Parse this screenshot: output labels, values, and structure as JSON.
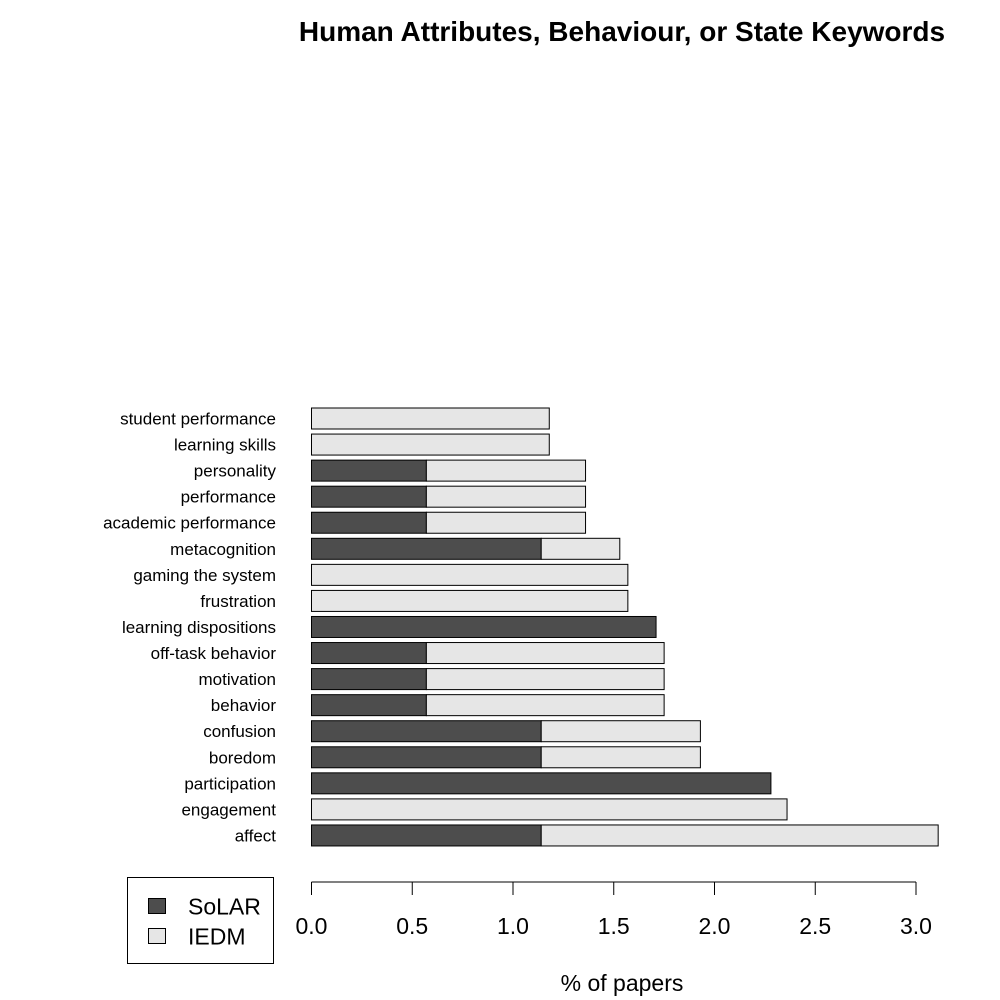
{
  "chart_data": {
    "type": "bar",
    "stacked": true,
    "orientation": "horizontal",
    "title": "Human Attributes, Behaviour, or State Keywords",
    "xlabel": "% of papers",
    "ylabel": "",
    "xlim": [
      0,
      3.0
    ],
    "x_ticks": [
      "0.0",
      "0.5",
      "1.0",
      "1.5",
      "2.0",
      "2.5",
      "3.0"
    ],
    "grid": false,
    "legend_position": "bottom-left",
    "categories": [
      "student performance",
      "learning skills",
      "personality",
      "performance",
      "academic performance",
      "metacognition",
      "gaming the system",
      "frustration",
      "learning dispositions",
      "off-task behavior",
      "motivation",
      "behavior",
      "confusion",
      "boredom",
      "participation",
      "engagement",
      "affect"
    ],
    "series": [
      {
        "name": "SoLAR",
        "color": "#4d4d4d",
        "values": [
          0,
          0,
          0.57,
          0.57,
          0.57,
          1.14,
          0,
          0,
          1.71,
          0.57,
          0.57,
          0.57,
          1.14,
          1.14,
          2.28,
          0,
          1.14
        ]
      },
      {
        "name": "IEDM",
        "color": "#e6e6e6",
        "values": [
          1.18,
          1.18,
          0.79,
          0.79,
          0.79,
          0.39,
          1.57,
          1.57,
          0,
          1.18,
          1.18,
          1.18,
          0.79,
          0.79,
          0,
          2.36,
          1.97
        ]
      }
    ]
  }
}
